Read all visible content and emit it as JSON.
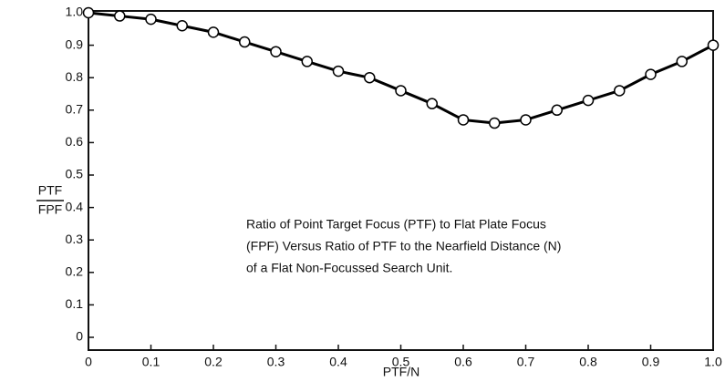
{
  "chart_data": {
    "type": "line",
    "x": [
      0,
      0.05,
      0.1,
      0.15,
      0.2,
      0.25,
      0.3,
      0.35,
      0.4,
      0.45,
      0.5,
      0.55,
      0.6,
      0.65,
      0.7,
      0.75,
      0.8,
      0.85,
      0.9,
      0.95,
      1.0
    ],
    "values": [
      1.0,
      0.99,
      0.98,
      0.96,
      0.94,
      0.91,
      0.88,
      0.85,
      0.82,
      0.8,
      0.76,
      0.72,
      0.67,
      0.66,
      0.67,
      0.7,
      0.73,
      0.76,
      0.81,
      0.85,
      0.9
    ],
    "color": "#000000",
    "xlim": [
      0,
      1.0
    ],
    "ylim": [
      0,
      1.0
    ],
    "xticks": [
      0,
      0.1,
      0.2,
      0.3,
      0.4,
      0.5,
      0.6,
      0.7,
      0.8,
      0.9,
      {
        "value": 1,
        "label": "1.0"
      }
    ],
    "yticks": [
      0,
      0.1,
      0.2,
      0.3,
      0.4,
      0.5,
      0.6,
      0.7,
      0.8,
      0.9,
      {
        "value": 1,
        "label": "1.0"
      }
    ],
    "y_label_numerator": "PTF",
    "y_label_denominator": "FPF",
    "x_label": "PTF/N",
    "annotation": [
      "Ratio of Point Target Focus (PTF) to Flat Plate Focus",
      "(FPF) Versus Ratio of PTF to the Nearfield Distance (N)",
      "of a Flat Non-Focussed Search Unit."
    ],
    "markers": true
  }
}
